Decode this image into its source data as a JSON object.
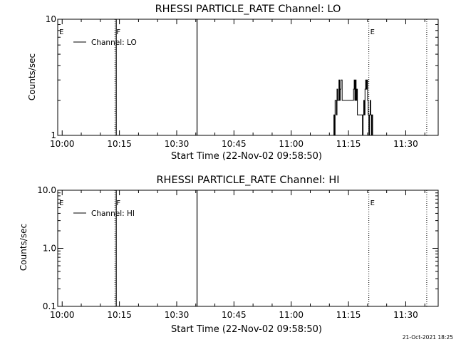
{
  "footer_stamp": "21-Oct-2021 18:25",
  "chart_data": [
    {
      "type": "line",
      "title": "RHESSI PARTICLE_RATE Channel: LO",
      "xlabel": "Start Time (22-Nov-02 09:58:50)",
      "ylabel": "Counts/sec",
      "x_ticks": [
        "10:00",
        "10:15",
        "10:30",
        "10:45",
        "11:00",
        "11:15",
        "11:30"
      ],
      "y_scale": "log",
      "ylim": [
        1,
        10
      ],
      "y_ticks": [
        "1",
        "10"
      ],
      "xlim": [
        "09:58:50",
        "11:38:30"
      ],
      "legend": "Channel: LO",
      "legend_position": "top-left",
      "markers": [
        {
          "label": "E",
          "time": "09:58:50",
          "style": "dotted"
        },
        {
          "label": "F",
          "time": "10:13:50",
          "style": "dotted"
        },
        {
          "label": "",
          "time": "10:14:10",
          "style": "solid"
        },
        {
          "label": "",
          "time": "10:35:20",
          "style": "solid"
        },
        {
          "label": "E",
          "time": "11:20:20",
          "style": "dotted"
        },
        {
          "label": "",
          "time": "11:35:30",
          "style": "dotted"
        }
      ],
      "series": [
        {
          "x": [
            "11:10:50",
            "11:11:10",
            "11:11:20",
            "11:11:30",
            "11:11:50",
            "11:12:00",
            "11:12:10",
            "11:12:30",
            "11:12:40",
            "11:12:50",
            "11:13:00",
            "11:13:20",
            "11:13:40",
            "11:14:00",
            "11:14:30",
            "11:15:00",
            "11:15:30",
            "11:16:00",
            "11:16:20",
            "11:16:30",
            "11:16:40",
            "11:16:50",
            "11:17:00",
            "11:17:10",
            "11:17:20",
            "11:17:40",
            "11:18:00",
            "11:18:20",
            "11:18:40",
            "11:18:50",
            "11:19:00",
            "11:19:10",
            "11:19:20",
            "11:19:30",
            "11:19:40",
            "11:19:50",
            "11:20:00",
            "11:20:10",
            "11:20:20",
            "11:20:30",
            "11:20:40",
            "11:20:50",
            "11:21:00",
            "11:21:10",
            "11:21:20",
            "11:21:30",
            "11:21:40",
            "11:21:50",
            "11:22:00"
          ],
          "y": [
            1,
            1.5,
            1,
            2,
            1.5,
            2.5,
            2,
            3,
            2,
            2.5,
            3,
            2,
            2,
            2,
            2,
            2,
            2,
            2,
            2.5,
            3,
            2,
            3,
            2,
            2.5,
            1.5,
            1.5,
            1.5,
            1.5,
            1,
            1.5,
            2,
            1.5,
            2.5,
            3,
            2.5,
            3,
            2,
            1.5,
            1,
            1.5,
            2,
            1.5,
            1,
            1.5,
            1,
            1,
            1,
            1,
            1
          ]
        }
      ]
    },
    {
      "type": "line",
      "title": "RHESSI PARTICLE_RATE Channel: HI",
      "xlabel": "Start Time (22-Nov-02 09:58:50)",
      "ylabel": "Counts/sec",
      "x_ticks": [
        "10:00",
        "10:15",
        "10:30",
        "10:45",
        "11:00",
        "11:15",
        "11:30"
      ],
      "y_scale": "log",
      "ylim": [
        0.1,
        10
      ],
      "y_ticks": [
        "0.1",
        "1.0",
        "10.0"
      ],
      "xlim": [
        "09:58:50",
        "11:38:30"
      ],
      "legend": "Channel: HI",
      "legend_position": "top-left",
      "markers": [
        {
          "label": "E",
          "time": "09:58:50",
          "style": "dotted"
        },
        {
          "label": "F",
          "time": "10:13:50",
          "style": "dotted"
        },
        {
          "label": "",
          "time": "10:14:10",
          "style": "solid"
        },
        {
          "label": "",
          "time": "10:35:20",
          "style": "solid"
        },
        {
          "label": "E",
          "time": "11:20:20",
          "style": "dotted"
        },
        {
          "label": "",
          "time": "11:35:30",
          "style": "dotted"
        }
      ],
      "series": []
    }
  ]
}
